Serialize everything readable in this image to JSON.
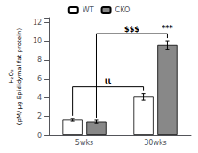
{
  "chart_data": {
    "type": "bar",
    "categories": [
      "5wks",
      "30wks"
    ],
    "series": [
      {
        "name": "WT",
        "color": "#ffffff",
        "values": [
          1.65,
          4.1
        ],
        "errors": [
          0.15,
          0.35
        ]
      },
      {
        "name": "CKO",
        "color": "#888888",
        "values": [
          1.45,
          9.6
        ],
        "errors": [
          0.15,
          0.45
        ]
      }
    ],
    "ylabel": [
      "H₂O₂",
      "(pM/ µg Epididymal fat protein)"
    ],
    "ylim": [
      0,
      12.5
    ],
    "yticks": [
      0,
      2,
      4,
      6,
      8,
      10,
      12
    ],
    "grid": false,
    "legend": "top",
    "annotations": [
      {
        "text": "tt",
        "series": "WT",
        "from": "5wks",
        "to": "30wks"
      },
      {
        "text": "$$$",
        "series": "CKO",
        "from": "5wks",
        "to": "30wks"
      },
      {
        "text": "***",
        "series": "CKO",
        "category": "30wks"
      }
    ]
  }
}
